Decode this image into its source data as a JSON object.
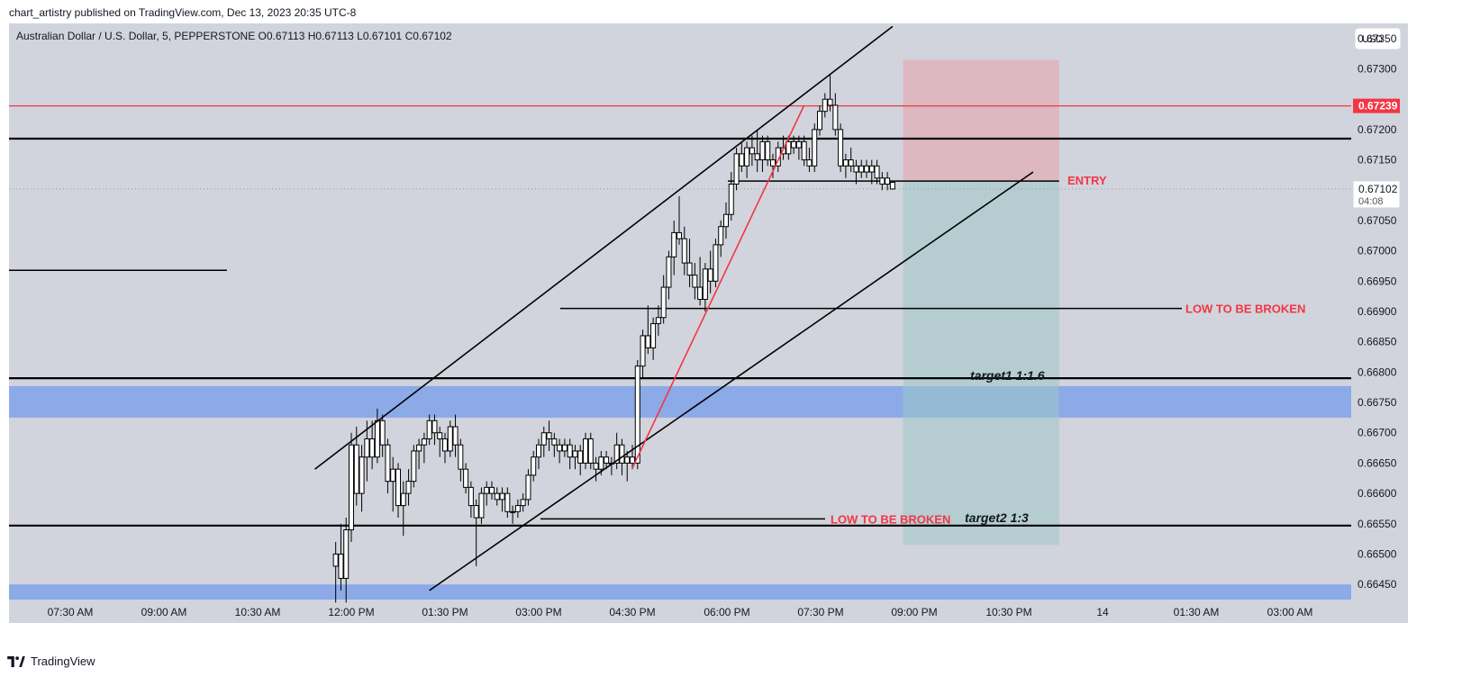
{
  "header": {
    "publish_text": "chart_artistry published on TradingView.com, Dec 13, 2023 20:35 UTC-8",
    "symbol_info": "Australian Dollar / U.S. Dollar, 5, PEPPERSTONE  O0.67113  H0.67113  L0.67101  C0.67102",
    "currency_button": "USD"
  },
  "footer": {
    "brand": "TradingView"
  },
  "colors": {
    "background": "#d1d4dc",
    "candle_up": "#ffffff",
    "candle_down": "#ffffff",
    "wick": "#000000",
    "red_line": "#f23645",
    "zone_blue": "#5b8def",
    "stop_zone": "#e8a0aa",
    "target_zone": "#9ec6c9"
  },
  "chart_data": {
    "type": "candlestick",
    "symbol": "Australian Dollar / U.S. Dollar",
    "timeframe": "5",
    "exchange": "PEPPERSTONE",
    "ohlc": {
      "open": 0.67113,
      "high": 0.67113,
      "low": 0.67101,
      "close": 0.67102
    },
    "ylim": [
      0.66425,
      0.67375
    ],
    "y_ticks": [
      "0.67350",
      "0.67300",
      "0.67250",
      "0.67200",
      "0.67150",
      "0.67100",
      "0.67050",
      "0.67000",
      "0.66950",
      "0.66900",
      "0.66850",
      "0.66800",
      "0.66750",
      "0.66700",
      "0.66650",
      "0.66600",
      "0.66550",
      "0.66500",
      "0.66450"
    ],
    "x_tick_labels": [
      "07:30 AM",
      "09:00 AM",
      "10:30 AM",
      "12:00 PM",
      "01:30 PM",
      "03:00 PM",
      "04:30 PM",
      "06:00 PM",
      "07:30 PM",
      "09:00 PM",
      "10:30 PM",
      "14",
      "01:30 AM",
      "03:00 AM"
    ],
    "price_labels": {
      "red_line": "0.67239",
      "last_price": "0.67102",
      "countdown": "04:08"
    },
    "annotations": {
      "entry": "ENTRY",
      "low_broken_1": "LOW TO BE BROKEN",
      "low_broken_2": "LOW TO BE BROKEN",
      "target1": "target1  1:1.6",
      "target2": "target2  1:3"
    },
    "levels": {
      "red_line": 0.67239,
      "upper_black": 0.67185,
      "left_short_line": 0.66968,
      "low_broken_1": 0.66905,
      "black_above_zone": 0.6679,
      "zone_top": 0.66777,
      "zone_bottom": 0.66725,
      "low_broken_2": 0.66558,
      "lower_black": 0.66547,
      "bottom_zone_top": 0.6645,
      "entry": 0.67115
    },
    "position": {
      "start_time": "08:50 PM",
      "end_time": "11:20 PM",
      "stop": 0.67315,
      "entry": 0.67115,
      "target": 0.66515
    },
    "channel": {
      "upper": [
        {
          "t": "11:25 AM",
          "p": 0.6664
        },
        {
          "t": "08:40 PM",
          "p": 0.6737
        }
      ],
      "lower": [
        {
          "t": "01:15 PM",
          "p": 0.6644
        },
        {
          "t": "10:55 PM",
          "p": 0.6713
        }
      ]
    },
    "red_trendline": [
      {
        "t": "04:30 PM",
        "p": 0.66642
      },
      {
        "t": "07:15 PM",
        "p": 0.6724
      }
    ],
    "candles": [
      {
        "t": "11:45 AM",
        "o": 0.6648,
        "h": 0.6652,
        "l": 0.6642,
        "c": 0.665
      },
      {
        "t": "11:50 AM",
        "o": 0.665,
        "h": 0.6655,
        "l": 0.6644,
        "c": 0.6646
      },
      {
        "t": "11:55 AM",
        "o": 0.6646,
        "h": 0.6656,
        "l": 0.6642,
        "c": 0.6654
      },
      {
        "t": "12:00 PM",
        "o": 0.6654,
        "h": 0.667,
        "l": 0.6652,
        "c": 0.6668
      },
      {
        "t": "12:05 PM",
        "o": 0.6668,
        "h": 0.6671,
        "l": 0.6658,
        "c": 0.666
      },
      {
        "t": "12:10 PM",
        "o": 0.666,
        "h": 0.6668,
        "l": 0.6657,
        "c": 0.6666
      },
      {
        "t": "12:15 PM",
        "o": 0.6666,
        "h": 0.6672,
        "l": 0.6662,
        "c": 0.6669
      },
      {
        "t": "12:20 PM",
        "o": 0.6669,
        "h": 0.6672,
        "l": 0.6664,
        "c": 0.6666
      },
      {
        "t": "12:25 PM",
        "o": 0.6666,
        "h": 0.6674,
        "l": 0.6665,
        "c": 0.6672
      },
      {
        "t": "12:30 PM",
        "o": 0.6672,
        "h": 0.6673,
        "l": 0.6666,
        "c": 0.6668
      },
      {
        "t": "12:35 PM",
        "o": 0.6668,
        "h": 0.6669,
        "l": 0.666,
        "c": 0.6662
      },
      {
        "t": "12:40 PM",
        "o": 0.6662,
        "h": 0.6666,
        "l": 0.6657,
        "c": 0.6664
      },
      {
        "t": "12:45 PM",
        "o": 0.6664,
        "h": 0.6665,
        "l": 0.6656,
        "c": 0.6658
      },
      {
        "t": "12:50 PM",
        "o": 0.6658,
        "h": 0.6662,
        "l": 0.6653,
        "c": 0.666
      },
      {
        "t": "12:55 PM",
        "o": 0.666,
        "h": 0.6664,
        "l": 0.6658,
        "c": 0.6662
      },
      {
        "t": "01:00 PM",
        "o": 0.6662,
        "h": 0.6668,
        "l": 0.6661,
        "c": 0.6667
      },
      {
        "t": "01:05 PM",
        "o": 0.6667,
        "h": 0.6669,
        "l": 0.6664,
        "c": 0.6668
      },
      {
        "t": "01:10 PM",
        "o": 0.6668,
        "h": 0.667,
        "l": 0.6665,
        "c": 0.6669
      },
      {
        "t": "01:15 PM",
        "o": 0.6669,
        "h": 0.6673,
        "l": 0.6668,
        "c": 0.6672
      },
      {
        "t": "01:20 PM",
        "o": 0.6672,
        "h": 0.6673,
        "l": 0.6668,
        "c": 0.667
      },
      {
        "t": "01:25 PM",
        "o": 0.667,
        "h": 0.6671,
        "l": 0.6666,
        "c": 0.6669
      },
      {
        "t": "01:30 PM",
        "o": 0.6669,
        "h": 0.667,
        "l": 0.6665,
        "c": 0.6667
      },
      {
        "t": "01:35 PM",
        "o": 0.6667,
        "h": 0.6672,
        "l": 0.6666,
        "c": 0.6671
      },
      {
        "t": "01:40 PM",
        "o": 0.6671,
        "h": 0.6673,
        "l": 0.6666,
        "c": 0.6668
      },
      {
        "t": "01:45 PM",
        "o": 0.6668,
        "h": 0.6669,
        "l": 0.6662,
        "c": 0.6664
      },
      {
        "t": "01:50 PM",
        "o": 0.6664,
        "h": 0.6665,
        "l": 0.666,
        "c": 0.6661
      },
      {
        "t": "01:55 PM",
        "o": 0.6661,
        "h": 0.6662,
        "l": 0.6656,
        "c": 0.6658
      },
      {
        "t": "02:00 PM",
        "o": 0.6658,
        "h": 0.6659,
        "l": 0.6648,
        "c": 0.6656
      },
      {
        "t": "02:05 PM",
        "o": 0.6656,
        "h": 0.6661,
        "l": 0.6655,
        "c": 0.666
      },
      {
        "t": "02:10 PM",
        "o": 0.666,
        "h": 0.6662,
        "l": 0.6658,
        "c": 0.6661
      },
      {
        "t": "02:15 PM",
        "o": 0.6661,
        "h": 0.6662,
        "l": 0.6659,
        "c": 0.666
      },
      {
        "t": "02:20 PM",
        "o": 0.666,
        "h": 0.6661,
        "l": 0.6658,
        "c": 0.6659
      },
      {
        "t": "02:25 PM",
        "o": 0.6659,
        "h": 0.6661,
        "l": 0.6657,
        "c": 0.666
      },
      {
        "t": "02:30 PM",
        "o": 0.666,
        "h": 0.6661,
        "l": 0.6656,
        "c": 0.6657
      },
      {
        "t": "02:35 PM",
        "o": 0.6657,
        "h": 0.6658,
        "l": 0.6655,
        "c": 0.6657
      },
      {
        "t": "02:40 PM",
        "o": 0.6657,
        "h": 0.6659,
        "l": 0.6656,
        "c": 0.6658
      },
      {
        "t": "02:45 PM",
        "o": 0.6658,
        "h": 0.666,
        "l": 0.6657,
        "c": 0.6659
      },
      {
        "t": "02:50 PM",
        "o": 0.6659,
        "h": 0.6664,
        "l": 0.6658,
        "c": 0.6663
      },
      {
        "t": "02:55 PM",
        "o": 0.6663,
        "h": 0.6667,
        "l": 0.6662,
        "c": 0.6666
      },
      {
        "t": "03:00 PM",
        "o": 0.6666,
        "h": 0.6669,
        "l": 0.6664,
        "c": 0.6668
      },
      {
        "t": "03:05 PM",
        "o": 0.6668,
        "h": 0.6671,
        "l": 0.6666,
        "c": 0.667
      },
      {
        "t": "03:10 PM",
        "o": 0.667,
        "h": 0.6672,
        "l": 0.6667,
        "c": 0.6669
      },
      {
        "t": "03:15 PM",
        "o": 0.6669,
        "h": 0.667,
        "l": 0.6666,
        "c": 0.6668
      },
      {
        "t": "03:20 PM",
        "o": 0.6668,
        "h": 0.6669,
        "l": 0.6665,
        "c": 0.6667
      },
      {
        "t": "03:25 PM",
        "o": 0.6667,
        "h": 0.6669,
        "l": 0.6666,
        "c": 0.6668
      },
      {
        "t": "03:30 PM",
        "o": 0.6668,
        "h": 0.6669,
        "l": 0.6664,
        "c": 0.6666
      },
      {
        "t": "03:35 PM",
        "o": 0.6666,
        "h": 0.6668,
        "l": 0.6664,
        "c": 0.6667
      },
      {
        "t": "03:40 PM",
        "o": 0.6667,
        "h": 0.6668,
        "l": 0.6663,
        "c": 0.6665
      },
      {
        "t": "03:45 PM",
        "o": 0.6665,
        "h": 0.667,
        "l": 0.6664,
        "c": 0.6669
      },
      {
        "t": "03:50 PM",
        "o": 0.6669,
        "h": 0.667,
        "l": 0.6664,
        "c": 0.6665
      },
      {
        "t": "03:55 PM",
        "o": 0.6665,
        "h": 0.6666,
        "l": 0.6662,
        "c": 0.6664
      },
      {
        "t": "04:00 PM",
        "o": 0.6664,
        "h": 0.6667,
        "l": 0.6663,
        "c": 0.6666
      },
      {
        "t": "04:05 PM",
        "o": 0.6666,
        "h": 0.6667,
        "l": 0.6664,
        "c": 0.6665
      },
      {
        "t": "04:10 PM",
        "o": 0.6665,
        "h": 0.6666,
        "l": 0.6663,
        "c": 0.6665
      },
      {
        "t": "04:15 PM",
        "o": 0.6665,
        "h": 0.667,
        "l": 0.6664,
        "c": 0.6668
      },
      {
        "t": "04:20 PM",
        "o": 0.6668,
        "h": 0.6669,
        "l": 0.6663,
        "c": 0.6665
      },
      {
        "t": "04:25 PM",
        "o": 0.6665,
        "h": 0.6667,
        "l": 0.6662,
        "c": 0.6666
      },
      {
        "t": "04:30 PM",
        "o": 0.6666,
        "h": 0.6668,
        "l": 0.6664,
        "c": 0.6665
      },
      {
        "t": "04:35 PM",
        "o": 0.6665,
        "h": 0.6682,
        "l": 0.6664,
        "c": 0.6681
      },
      {
        "t": "04:40 PM",
        "o": 0.6681,
        "h": 0.6687,
        "l": 0.6679,
        "c": 0.6686
      },
      {
        "t": "04:45 PM",
        "o": 0.6686,
        "h": 0.6691,
        "l": 0.6683,
        "c": 0.6684
      },
      {
        "t": "04:50 PM",
        "o": 0.6684,
        "h": 0.6689,
        "l": 0.6682,
        "c": 0.6688
      },
      {
        "t": "04:55 PM",
        "o": 0.6688,
        "h": 0.6691,
        "l": 0.6686,
        "c": 0.6689
      },
      {
        "t": "05:00 PM",
        "o": 0.6689,
        "h": 0.6696,
        "l": 0.6688,
        "c": 0.6694
      },
      {
        "t": "05:05 PM",
        "o": 0.6694,
        "h": 0.67,
        "l": 0.6692,
        "c": 0.6699
      },
      {
        "t": "05:10 PM",
        "o": 0.6699,
        "h": 0.6705,
        "l": 0.6696,
        "c": 0.6703
      },
      {
        "t": "05:15 PM",
        "o": 0.6703,
        "h": 0.6709,
        "l": 0.6701,
        "c": 0.6702
      },
      {
        "t": "05:20 PM",
        "o": 0.6702,
        "h": 0.6704,
        "l": 0.6696,
        "c": 0.6698
      },
      {
        "t": "05:25 PM",
        "o": 0.6698,
        "h": 0.6702,
        "l": 0.6694,
        "c": 0.6696
      },
      {
        "t": "05:30 PM",
        "o": 0.6696,
        "h": 0.6698,
        "l": 0.6692,
        "c": 0.6694
      },
      {
        "t": "05:35 PM",
        "o": 0.6694,
        "h": 0.6699,
        "l": 0.6691,
        "c": 0.6692
      },
      {
        "t": "05:40 PM",
        "o": 0.6692,
        "h": 0.6698,
        "l": 0.669,
        "c": 0.6697
      },
      {
        "t": "05:45 PM",
        "o": 0.6697,
        "h": 0.67,
        "l": 0.6693,
        "c": 0.6695
      },
      {
        "t": "05:50 PM",
        "o": 0.6695,
        "h": 0.6702,
        "l": 0.6694,
        "c": 0.6701
      },
      {
        "t": "05:55 PM",
        "o": 0.6701,
        "h": 0.6705,
        "l": 0.6699,
        "c": 0.6704
      },
      {
        "t": "06:00 PM",
        "o": 0.6704,
        "h": 0.6708,
        "l": 0.6702,
        "c": 0.6706
      },
      {
        "t": "06:05 PM",
        "o": 0.6706,
        "h": 0.6713,
        "l": 0.6705,
        "c": 0.6711
      },
      {
        "t": "06:10 PM",
        "o": 0.6711,
        "h": 0.6717,
        "l": 0.671,
        "c": 0.6716
      },
      {
        "t": "06:15 PM",
        "o": 0.6716,
        "h": 0.6718,
        "l": 0.6713,
        "c": 0.6714
      },
      {
        "t": "06:20 PM",
        "o": 0.6714,
        "h": 0.6718,
        "l": 0.6712,
        "c": 0.6717
      },
      {
        "t": "06:25 PM",
        "o": 0.6717,
        "h": 0.6719,
        "l": 0.6714,
        "c": 0.6716
      },
      {
        "t": "06:30 PM",
        "o": 0.6716,
        "h": 0.672,
        "l": 0.6713,
        "c": 0.6715
      },
      {
        "t": "06:35 PM",
        "o": 0.6715,
        "h": 0.6719,
        "l": 0.6713,
        "c": 0.6718
      },
      {
        "t": "06:40 PM",
        "o": 0.6718,
        "h": 0.6719,
        "l": 0.6714,
        "c": 0.6715
      },
      {
        "t": "06:45 PM",
        "o": 0.6715,
        "h": 0.6716,
        "l": 0.6712,
        "c": 0.6714
      },
      {
        "t": "06:50 PM",
        "o": 0.6714,
        "h": 0.6718,
        "l": 0.6713,
        "c": 0.6717
      },
      {
        "t": "06:55 PM",
        "o": 0.6717,
        "h": 0.6719,
        "l": 0.6715,
        "c": 0.6716
      },
      {
        "t": "07:00 PM",
        "o": 0.6716,
        "h": 0.6719,
        "l": 0.6715,
        "c": 0.6718
      },
      {
        "t": "07:05 PM",
        "o": 0.6718,
        "h": 0.6719,
        "l": 0.6716,
        "c": 0.6717
      },
      {
        "t": "07:10 PM",
        "o": 0.6717,
        "h": 0.6719,
        "l": 0.6715,
        "c": 0.6718
      },
      {
        "t": "07:15 PM",
        "o": 0.6718,
        "h": 0.6719,
        "l": 0.6714,
        "c": 0.6715
      },
      {
        "t": "07:20 PM",
        "o": 0.6715,
        "h": 0.6717,
        "l": 0.6713,
        "c": 0.6714
      },
      {
        "t": "07:25 PM",
        "o": 0.6714,
        "h": 0.6721,
        "l": 0.6713,
        "c": 0.672
      },
      {
        "t": "07:30 PM",
        "o": 0.672,
        "h": 0.6724,
        "l": 0.6719,
        "c": 0.6723
      },
      {
        "t": "07:35 PM",
        "o": 0.6723,
        "h": 0.6726,
        "l": 0.6722,
        "c": 0.6725
      },
      {
        "t": "07:40 PM",
        "o": 0.6725,
        "h": 0.6729,
        "l": 0.6723,
        "c": 0.6724
      },
      {
        "t": "07:45 PM",
        "o": 0.6724,
        "h": 0.6726,
        "l": 0.6719,
        "c": 0.672
      },
      {
        "t": "07:50 PM",
        "o": 0.672,
        "h": 0.6721,
        "l": 0.6713,
        "c": 0.6714
      },
      {
        "t": "07:55 PM",
        "o": 0.6714,
        "h": 0.6716,
        "l": 0.6712,
        "c": 0.6715
      },
      {
        "t": "08:00 PM",
        "o": 0.6715,
        "h": 0.6717,
        "l": 0.6713,
        "c": 0.6714
      },
      {
        "t": "08:05 PM",
        "o": 0.6714,
        "h": 0.6715,
        "l": 0.6711,
        "c": 0.6713
      },
      {
        "t": "08:10 PM",
        "o": 0.6713,
        "h": 0.6715,
        "l": 0.6712,
        "c": 0.6714
      },
      {
        "t": "08:15 PM",
        "o": 0.6714,
        "h": 0.6715,
        "l": 0.6712,
        "c": 0.6713
      },
      {
        "t": "08:20 PM",
        "o": 0.6713,
        "h": 0.6715,
        "l": 0.6711,
        "c": 0.6714
      },
      {
        "t": "08:25 PM",
        "o": 0.6714,
        "h": 0.6715,
        "l": 0.6711,
        "c": 0.6712
      },
      {
        "t": "08:30 PM",
        "o": 0.6712,
        "h": 0.6713,
        "l": 0.671,
        "c": 0.6711
      },
      {
        "t": "08:35 PM",
        "o": 0.6711,
        "h": 0.6713,
        "l": 0.671,
        "c": 0.6712
      },
      {
        "t": "08:40 PM",
        "o": 0.67113,
        "h": 0.67113,
        "l": 0.67101,
        "c": 0.67102
      }
    ]
  }
}
